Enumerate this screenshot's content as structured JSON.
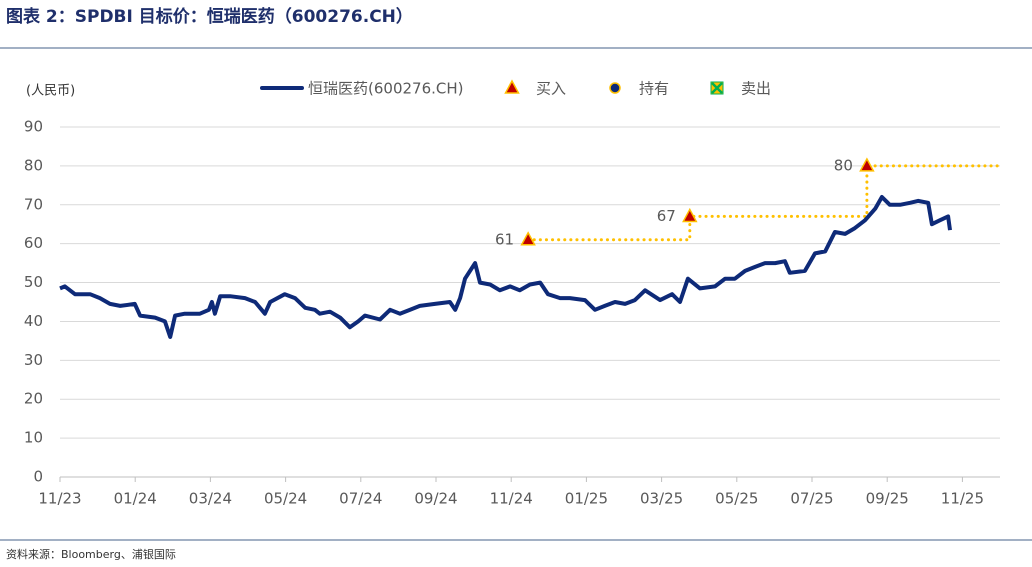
{
  "chart_data": {
    "type": "line",
    "title": "图表 2：SPDBI 目标价：恒瑞医药（600276.CH）",
    "y_label": "(人民币)",
    "source": "资料来源：Bloomberg、浦银国际",
    "xlim": [
      0,
      25
    ],
    "xticks": [
      {
        "value": 0,
        "label": "11/23"
      },
      {
        "value": 2,
        "label": "01/24"
      },
      {
        "value": 4,
        "label": "03/24"
      },
      {
        "value": 6,
        "label": "05/24"
      },
      {
        "value": 8,
        "label": "07/24"
      },
      {
        "value": 10,
        "label": "09/24"
      },
      {
        "value": 12,
        "label": "11/24"
      },
      {
        "value": 14,
        "label": "01/25"
      },
      {
        "value": 16,
        "label": "03/25"
      },
      {
        "value": 18,
        "label": "05/25"
      },
      {
        "value": 20,
        "label": "07/25"
      },
      {
        "value": 22,
        "label": "09/25"
      },
      {
        "value": 24,
        "label": "11/25"
      }
    ],
    "ylim": [
      0,
      90
    ],
    "yticks": [
      0,
      10,
      20,
      30,
      40,
      50,
      60,
      70,
      80,
      90
    ],
    "grid": true,
    "series": [
      {
        "name": "恒瑞医药(600276.CH)",
        "color": "#0e2a78",
        "marker": "line",
        "x": [
          0,
          0.13,
          0.4,
          0.8,
          1.06,
          1.33,
          1.6,
          1.99,
          2.13,
          2.53,
          2.79,
          2.93,
          3.06,
          3.32,
          3.72,
          3.96,
          4.04,
          4.12,
          4.26,
          4.52,
          4.92,
          5.19,
          5.45,
          5.59,
          5.98,
          6.25,
          6.52,
          6.78,
          6.91,
          7.18,
          7.45,
          7.71,
          7.93,
          8.11,
          8.51,
          8.78,
          9.04,
          9.31,
          9.57,
          9.97,
          10.37,
          10.51,
          10.64,
          10.77,
          11.04,
          11.17,
          11.44,
          11.7,
          11.97,
          12.23,
          12.5,
          12.77,
          12.98,
          13.3,
          13.56,
          13.96,
          14.23,
          14.49,
          14.76,
          15.03,
          15.29,
          15.56,
          15.96,
          16.28,
          16.49,
          16.7,
          17.02,
          17.42,
          17.69,
          17.95,
          18.22,
          18.48,
          18.75,
          19.02,
          19.28,
          19.41,
          19.81,
          20.08,
          20.35,
          20.61,
          20.88,
          21.14,
          21.41,
          21.68,
          21.86,
          22.07,
          22.34,
          22.61,
          22.82,
          23.09,
          23.19,
          23.4,
          23.62,
          23.67
        ],
        "values": [
          48.5,
          49,
          47,
          47,
          46,
          44.5,
          44,
          44.5,
          41.5,
          41,
          40,
          36,
          41.5,
          42,
          42,
          43,
          45,
          42,
          46.5,
          46.5,
          46,
          45,
          42,
          45,
          47,
          46,
          43.5,
          43,
          42,
          42.5,
          41,
          38.5,
          40,
          41.5,
          40.5,
          43,
          42,
          43,
          44,
          44.5,
          45,
          43,
          46,
          51,
          55,
          50,
          49.5,
          48,
          49,
          48,
          49.5,
          50,
          47,
          46,
          46,
          45.5,
          43,
          44,
          45,
          44.5,
          45.5,
          48,
          45.5,
          47,
          45,
          51,
          48.5,
          49,
          51,
          51,
          53,
          54,
          55,
          55,
          55.5,
          52.5,
          53,
          57.5,
          58,
          63,
          62.5,
          64,
          66,
          69,
          72,
          70,
          70,
          70.5,
          71,
          70.5,
          65,
          66,
          67,
          63.5
        ]
      },
      {
        "name": "买入",
        "color": "#c00000",
        "marker": "triangle",
        "x": [
          12.45,
          16.75,
          21.46
        ],
        "values": [
          61,
          67,
          80
        ]
      },
      {
        "name": "持有",
        "color": "#0e2a78",
        "marker": "circle",
        "x": [],
        "values": []
      },
      {
        "name": "卖出",
        "color": "#00b050",
        "marker": "x-square",
        "x": [],
        "values": []
      }
    ],
    "target_line": {
      "color": "#ffc000",
      "x": [
        12.45,
        16.75,
        16.75,
        21.46,
        21.46,
        25
      ],
      "values": [
        61,
        61,
        67,
        67,
        80,
        80
      ]
    }
  }
}
